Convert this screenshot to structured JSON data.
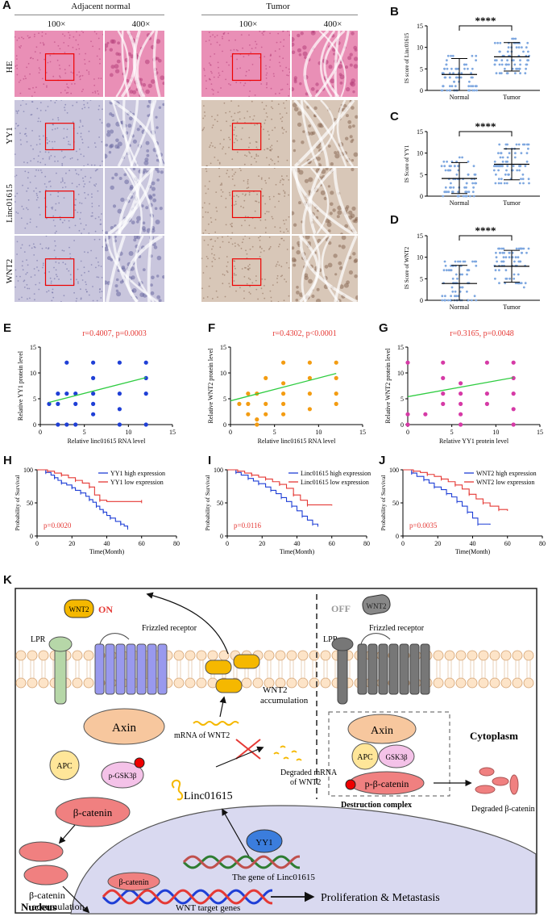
{
  "panel_letters": {
    "A": "A",
    "B": "B",
    "C": "C",
    "D": "D",
    "E": "E",
    "F": "F",
    "G": "G",
    "H": "H",
    "I": "I",
    "J": "J",
    "K": "K"
  },
  "ihc": {
    "group_normal": "Adjacent normal",
    "group_tumor": "Tumor",
    "mag_low": "100×",
    "mag_high": "400×",
    "rows": [
      "HE",
      "YY1",
      "Linc01615",
      "WNT2"
    ],
    "colors": {
      "he": "#e98fb6",
      "ihc_normal": "#c9c6dd",
      "ihc_tumor": "#d8c7b8"
    }
  },
  "chart_data": [
    {
      "id": "B",
      "type": "scatter",
      "title": "",
      "ylabel": "IS score of Linc01615",
      "categories": [
        "Normal",
        "Tumor"
      ],
      "ylim": [
        0,
        15
      ],
      "yticks": [
        0,
        5,
        10,
        15
      ],
      "significance": "****",
      "series": [
        {
          "name": "Normal",
          "mean": 3.7,
          "sd_low": 0,
          "sd_high": 7.4
        },
        {
          "name": "Tumor",
          "mean": 7.8,
          "sd_low": 4.5,
          "sd_high": 11.1
        }
      ]
    },
    {
      "id": "C",
      "type": "scatter",
      "ylabel": "IS Score of YY1",
      "categories": [
        "Normal",
        "Tumor"
      ],
      "ylim": [
        0,
        15
      ],
      "yticks": [
        0,
        5,
        10,
        15
      ],
      "significance": "****",
      "series": [
        {
          "name": "Normal",
          "mean": 4.1,
          "sd_low": 0.6,
          "sd_high": 7.8
        },
        {
          "name": "Tumor",
          "mean": 7.4,
          "sd_low": 3.8,
          "sd_high": 11
        }
      ]
    },
    {
      "id": "D",
      "type": "scatter",
      "ylabel": "IS Score of WNT2",
      "categories": [
        "Normal",
        "Tumor"
      ],
      "ylim": [
        0,
        15
      ],
      "yticks": [
        0,
        5,
        10,
        15
      ],
      "significance": "****",
      "series": [
        {
          "name": "Normal",
          "mean": 3.9,
          "sd_low": 0,
          "sd_high": 8.1
        },
        {
          "name": "Tumor",
          "mean": 7.9,
          "sd_low": 4.2,
          "sd_high": 11.6
        }
      ]
    },
    {
      "id": "E",
      "type": "scatter",
      "xlabel": "Relative linc01615 RNA level",
      "ylabel": "Relative YY1 protein level",
      "annotation": "r=0.4007, p=0.0003",
      "xlim": [
        0,
        15
      ],
      "ylim": [
        0,
        15
      ],
      "xticks": [
        0,
        5,
        10,
        15
      ],
      "yticks": [
        0,
        5,
        10,
        15
      ],
      "color": "#1f3fd6",
      "points": [
        [
          1,
          4
        ],
        [
          2,
          4
        ],
        [
          2,
          0
        ],
        [
          3,
          0
        ],
        [
          3,
          6
        ],
        [
          3,
          12
        ],
        [
          4,
          4
        ],
        [
          4,
          6
        ],
        [
          4,
          0
        ],
        [
          6,
          6
        ],
        [
          6,
          4
        ],
        [
          6,
          9
        ],
        [
          6,
          2
        ],
        [
          6,
          12
        ],
        [
          9,
          0
        ],
        [
          9,
          12
        ],
        [
          9,
          6
        ],
        [
          9,
          3
        ],
        [
          12,
          6
        ],
        [
          12,
          9
        ],
        [
          12,
          12
        ],
        [
          12,
          0
        ],
        [
          2,
          6
        ]
      ],
      "fit": [
        [
          1,
          4.3
        ],
        [
          12,
          9.1
        ]
      ]
    },
    {
      "id": "F",
      "type": "scatter",
      "xlabel": "Relative linc01615 RNA level",
      "ylabel": "Relative WNT2 protein level",
      "annotation": "r=0.4302, p<0.0001",
      "xlim": [
        0,
        15
      ],
      "ylim": [
        0,
        15
      ],
      "xticks": [
        0,
        5,
        10,
        15
      ],
      "yticks": [
        0,
        5,
        10,
        15
      ],
      "color": "#f39c12",
      "points": [
        [
          1,
          4
        ],
        [
          2,
          4
        ],
        [
          2,
          2
        ],
        [
          2,
          6
        ],
        [
          3,
          0
        ],
        [
          3,
          1
        ],
        [
          3,
          6
        ],
        [
          4,
          2
        ],
        [
          4,
          4
        ],
        [
          4,
          9
        ],
        [
          6,
          12
        ],
        [
          6,
          2
        ],
        [
          6,
          4
        ],
        [
          6,
          6
        ],
        [
          6,
          8
        ],
        [
          9,
          3
        ],
        [
          9,
          6
        ],
        [
          9,
          9
        ],
        [
          9,
          12
        ],
        [
          12,
          4
        ],
        [
          12,
          6
        ],
        [
          12,
          12
        ],
        [
          12,
          9
        ]
      ],
      "fit": [
        [
          0,
          4.6
        ],
        [
          12,
          9.9
        ]
      ]
    },
    {
      "id": "G",
      "type": "scatter",
      "xlabel": "Relative YY1 protein level",
      "ylabel": "Relative WNT2 protein level",
      "annotation": "r=0.3165, p=0.0048",
      "xlim": [
        0,
        15
      ],
      "ylim": [
        0,
        15
      ],
      "xticks": [
        0,
        5,
        10,
        15
      ],
      "yticks": [
        0,
        5,
        10,
        15
      ],
      "color": "#d63aa6",
      "points": [
        [
          0,
          0
        ],
        [
          0,
          2
        ],
        [
          0,
          12
        ],
        [
          2,
          2
        ],
        [
          4,
          6
        ],
        [
          4,
          4
        ],
        [
          4,
          9
        ],
        [
          4,
          12
        ],
        [
          6,
          4
        ],
        [
          6,
          6
        ],
        [
          6,
          2
        ],
        [
          6,
          8
        ],
        [
          6,
          0
        ],
        [
          9,
          6
        ],
        [
          9,
          12
        ],
        [
          9,
          4
        ],
        [
          12,
          3
        ],
        [
          12,
          6
        ],
        [
          12,
          9
        ],
        [
          12,
          12
        ],
        [
          12,
          0
        ]
      ],
      "fit": [
        [
          0,
          5.4
        ],
        [
          12,
          9.1
        ]
      ]
    },
    {
      "id": "H",
      "type": "line",
      "xlabel": "Time(Month)",
      "ylabel": "Probability of Survival",
      "xlim": [
        0,
        80
      ],
      "ylim": [
        0,
        100
      ],
      "xticks": [
        0,
        20,
        40,
        60,
        80
      ],
      "yticks": [
        0,
        50,
        100
      ],
      "pvalue": "p=0.0020",
      "series": [
        {
          "name": "YY1 high expression",
          "color": "#1f3fd6",
          "x": [
            0,
            5,
            8,
            10,
            12,
            14,
            17,
            20,
            22,
            25,
            28,
            30,
            32,
            34,
            36,
            38,
            40,
            42,
            45,
            48,
            50,
            52
          ],
          "y": [
            100,
            96,
            92,
            88,
            84,
            80,
            77,
            73,
            69,
            65,
            60,
            55,
            51,
            45,
            40,
            36,
            31,
            27,
            22,
            18,
            15,
            12
          ]
        },
        {
          "name": "YY1 low expression",
          "color": "#e53935",
          "x": [
            0,
            6,
            10,
            14,
            18,
            22,
            26,
            30,
            33,
            36,
            40,
            60
          ],
          "y": [
            100,
            98,
            95,
            92,
            88,
            84,
            80,
            74,
            62,
            54,
            52,
            52
          ]
        }
      ]
    },
    {
      "id": "I",
      "type": "line",
      "xlabel": "Time(Month)",
      "ylabel": "Probability of Survival",
      "xlim": [
        0,
        80
      ],
      "ylim": [
        0,
        100
      ],
      "xticks": [
        0,
        20,
        40,
        60,
        80
      ],
      "yticks": [
        0,
        50,
        100
      ],
      "pvalue": "p=0.0116",
      "series": [
        {
          "name": "Linc01615 high expression",
          "color": "#1f3fd6",
          "x": [
            0,
            5,
            8,
            12,
            15,
            18,
            22,
            25,
            28,
            31,
            34,
            37,
            40,
            43,
            46,
            49,
            52
          ],
          "y": [
            100,
            96,
            92,
            87,
            83,
            79,
            74,
            69,
            64,
            58,
            52,
            45,
            38,
            30,
            24,
            18,
            14
          ]
        },
        {
          "name": "Linc01615 low expression",
          "color": "#e53935",
          "x": [
            0,
            6,
            10,
            14,
            18,
            22,
            26,
            30,
            34,
            38,
            42,
            46,
            60
          ],
          "y": [
            100,
            98,
            95,
            92,
            89,
            86,
            82,
            78,
            72,
            62,
            54,
            47,
            46
          ]
        }
      ]
    },
    {
      "id": "J",
      "type": "line",
      "xlabel": "Time(Month)",
      "ylabel": "Probability of Survival",
      "xlim": [
        0,
        80
      ],
      "ylim": [
        0,
        100
      ],
      "xticks": [
        0,
        20,
        40,
        60,
        80
      ],
      "yticks": [
        0,
        50,
        100
      ],
      "pvalue": "p=0.0035",
      "series": [
        {
          "name": "WNT2 high expression",
          "color": "#1f3fd6",
          "x": [
            0,
            5,
            8,
            12,
            15,
            18,
            22,
            25,
            28,
            31,
            34,
            37,
            40,
            43,
            50
          ],
          "y": [
            100,
            95,
            90,
            85,
            80,
            74,
            70,
            64,
            59,
            52,
            45,
            36,
            27,
            18,
            17
          ]
        },
        {
          "name": "WNT2 low expression",
          "color": "#e53935",
          "x": [
            0,
            6,
            10,
            14,
            18,
            22,
            26,
            30,
            34,
            38,
            42,
            46,
            50,
            55,
            60
          ],
          "y": [
            100,
            98,
            96,
            93,
            90,
            86,
            82,
            77,
            71,
            63,
            56,
            50,
            45,
            40,
            38
          ]
        }
      ]
    }
  ],
  "diagram": {
    "on": "ON",
    "off": "OFF",
    "wnt2": "WNT2",
    "lpr": "LPR",
    "lpr_right": "LPR",
    "frizzled": "Frizzled receptor",
    "frizzled_right": "Frizzled receptor",
    "axin": "Axin",
    "axin_right": "Axin",
    "apc": "APC",
    "apc_right": "APC",
    "pgsk": "p-GSK3β",
    "gsk": "GSK3β",
    "bcat": "β-catenin",
    "pbcat": "p-β-catenin",
    "accum": "β-catenin\naccumulation",
    "wnt2_accum": "WNT2\naccumulation",
    "mrna": "mRNA of WNT2",
    "degraded_mrna": "Degraded mRNA\nof WNT2",
    "linc": "Linc01615",
    "yy1": "YY1",
    "gene": "The gene of Linc01615",
    "nuc_bcat": "β-catenin",
    "targets": "WNT target genes",
    "prolif": "Proliferation & Metastasis",
    "nucleus": "Nucleus",
    "cytoplasm": "Cytoplasm",
    "destruction": "Destruction complex",
    "degraded_bcat": "Degraded β-catenin"
  }
}
